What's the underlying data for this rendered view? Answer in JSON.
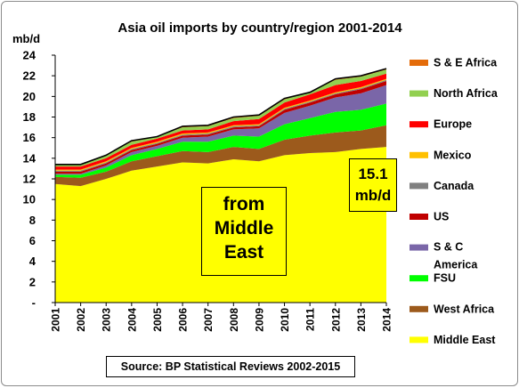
{
  "chart_data": {
    "type": "area",
    "title": "Asia oil imports by country/region 2001-2014",
    "ylabel": "mb/d",
    "xlabel": "",
    "x": [
      "2001",
      "2002",
      "2003",
      "2004",
      "2005",
      "2006",
      "2007",
      "2008",
      "2009",
      "2010",
      "2011",
      "2012",
      "2013",
      "2014"
    ],
    "ylim": [
      0,
      24
    ],
    "ytick_labels": [
      "-",
      "2",
      "4",
      "6",
      "8",
      "10",
      "12",
      "14",
      "16",
      "18",
      "20",
      "22",
      "24"
    ],
    "stacked": true,
    "grid": false,
    "legend": "right",
    "series": [
      {
        "name": "Middle East",
        "color": "#ffff00",
        "values": [
          11.5,
          11.3,
          12.0,
          12.8,
          13.2,
          13.6,
          13.5,
          13.9,
          13.7,
          14.3,
          14.5,
          14.6,
          14.9,
          15.1
        ]
      },
      {
        "name": "West Africa",
        "color": "#9c5a1c",
        "values": [
          0.7,
          0.8,
          0.7,
          0.9,
          1.0,
          1.1,
          1.1,
          1.2,
          1.2,
          1.5,
          1.7,
          1.9,
          1.8,
          2.1
        ]
      },
      {
        "name": "FSU",
        "color": "#00ff00",
        "values": [
          0.2,
          0.3,
          0.4,
          0.6,
          0.7,
          0.9,
          1.0,
          1.1,
          1.2,
          1.5,
          1.7,
          2.0,
          2.0,
          2.1
        ]
      },
      {
        "name": "S & C America",
        "color": "#7a66a8",
        "values": [
          0.1,
          0.1,
          0.2,
          0.3,
          0.3,
          0.4,
          0.5,
          0.6,
          0.8,
          1.1,
          1.2,
          1.4,
          1.6,
          1.8
        ]
      },
      {
        "name": "US",
        "color": "#c00000",
        "values": [
          0.2,
          0.2,
          0.2,
          0.2,
          0.2,
          0.2,
          0.2,
          0.2,
          0.2,
          0.3,
          0.3,
          0.3,
          0.4,
          0.4
        ]
      },
      {
        "name": "Canada",
        "color": "#808080",
        "values": [
          0.1,
          0.1,
          0.1,
          0.1,
          0.1,
          0.1,
          0.1,
          0.1,
          0.1,
          0.1,
          0.1,
          0.1,
          0.1,
          0.1
        ]
      },
      {
        "name": "Mexico",
        "color": "#ffc000",
        "values": [
          0.1,
          0.1,
          0.1,
          0.1,
          0.1,
          0.1,
          0.1,
          0.1,
          0.1,
          0.1,
          0.1,
          0.1,
          0.1,
          0.1
        ]
      },
      {
        "name": "Europe",
        "color": "#ff0000",
        "values": [
          0.3,
          0.3,
          0.3,
          0.3,
          0.3,
          0.3,
          0.3,
          0.4,
          0.5,
          0.5,
          0.6,
          0.7,
          0.6,
          0.5
        ]
      },
      {
        "name": "North Africa",
        "color": "#92d050",
        "values": [
          0.2,
          0.2,
          0.3,
          0.3,
          0.2,
          0.3,
          0.3,
          0.3,
          0.3,
          0.3,
          0.2,
          0.5,
          0.4,
          0.4
        ]
      },
      {
        "name": "S & E Africa",
        "color": "#e46c0a",
        "values": [
          0.0,
          0.0,
          0.0,
          0.1,
          0.0,
          0.1,
          0.1,
          0.1,
          0.1,
          0.1,
          0.0,
          0.1,
          0.1,
          0.1
        ]
      }
    ],
    "legend_order": [
      "S & E Africa",
      "North Africa",
      "Europe",
      "Mexico",
      "Canada",
      "US",
      "S & C America",
      "FSU",
      "West Africa",
      "Middle East"
    ],
    "annotations": {
      "middle_east_line1": "from",
      "middle_east_line2": "Middle",
      "middle_east_line3": "East",
      "value_line1": "15.1",
      "value_line2": "mb/d"
    },
    "source": "Source: BP Statistical Reviews 2002-2015"
  }
}
